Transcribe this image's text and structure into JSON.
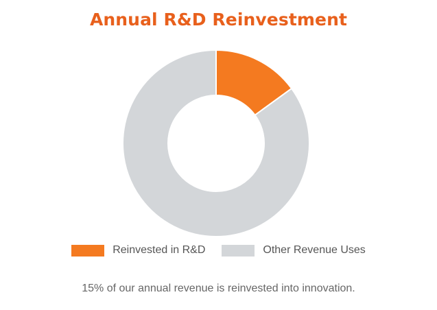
{
  "title": "Annual R&D Reinvestment",
  "caption": "15% of our annual revenue is reinvested into innovation.",
  "colors": {
    "title": "#e8601c",
    "rd": "#f47a20",
    "other": "#d3d6d9"
  },
  "chart_data": {
    "type": "pie",
    "variant": "donut",
    "title": "Annual R&D Reinvestment",
    "categories": [
      "Reinvested in R&D",
      "Other Revenue Uses"
    ],
    "values": [
      15,
      85
    ],
    "unit": "%",
    "legend": "bottom",
    "colors": [
      "#f47a20",
      "#d3d6d9"
    ]
  }
}
